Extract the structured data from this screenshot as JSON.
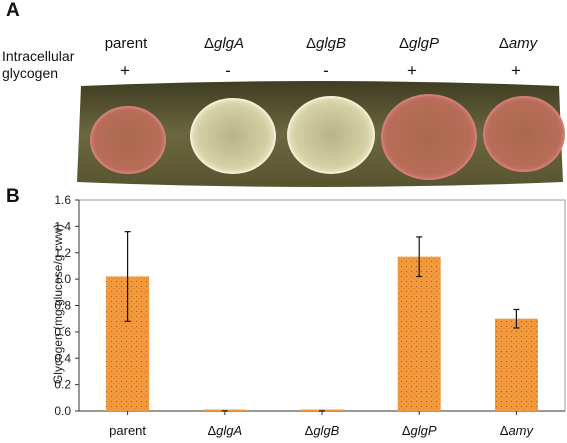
{
  "panel_a": {
    "letter": "A",
    "row_label_line1": "Intracellular",
    "row_label_line2": "glycogen",
    "strains": [
      {
        "delta": "",
        "name": "parent",
        "sign": "+"
      },
      {
        "delta": "Δ",
        "name": "glgA",
        "sign": "-"
      },
      {
        "delta": "Δ",
        "name": "glgB",
        "sign": "-"
      },
      {
        "delta": "Δ",
        "name": "glgP",
        "sign": "+"
      },
      {
        "delta": "Δ",
        "name": "amy",
        "sign": "+"
      }
    ],
    "colors": {
      "plate_bg": "#5d5a36",
      "stained_colony": "#c2735f",
      "unstained_colony": "#e6e3b4"
    }
  },
  "panel_b": {
    "letter": "B"
  },
  "chart_data": {
    "type": "bar",
    "categories": [
      "parent",
      "ΔglgA",
      "ΔglgB",
      "ΔglgP",
      "Δamy"
    ],
    "series": [
      {
        "values": [
          1.02,
          0.0,
          0.0,
          1.17,
          0.7
        ],
        "errors": [
          0.34,
          0.0,
          0.0,
          0.15,
          0.07
        ]
      }
    ],
    "ylabel": "Glycogen (mg glucose/g cww)",
    "xlabel": "",
    "ylim": [
      0,
      1.6
    ],
    "yticks": [
      "0.0",
      "0.2",
      "0.4",
      "0.6",
      "0.8",
      "1.0",
      "1.2",
      "1.4",
      "1.6"
    ],
    "bar_color": "#f59a3c",
    "grid": false
  }
}
